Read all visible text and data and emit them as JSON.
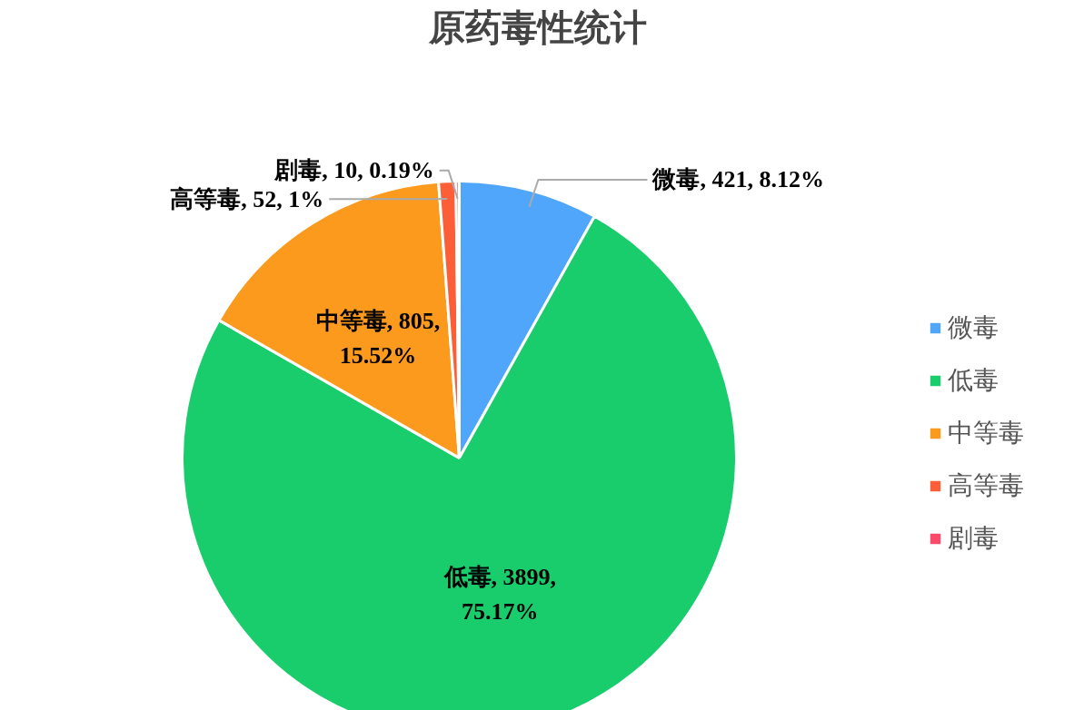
{
  "chart_data": {
    "type": "pie",
    "title": "原药毒性统计",
    "categories": [
      "微毒",
      "低毒",
      "中等毒",
      "高等毒",
      "剧毒"
    ],
    "values": [
      421,
      3899,
      805,
      52,
      10
    ],
    "colors": [
      "#4fa6fb",
      "#19cc6c",
      "#fb9a1c",
      "#fc5e38",
      "#fd4a6a"
    ],
    "value_labels": [
      "微毒, 421, 8.12%",
      "低毒, 3899, 75.17%",
      "中等毒, 805, 15.52%",
      "高等毒, 52, 1%",
      "剧毒, 10, 0.19%"
    ],
    "legend": "right"
  }
}
